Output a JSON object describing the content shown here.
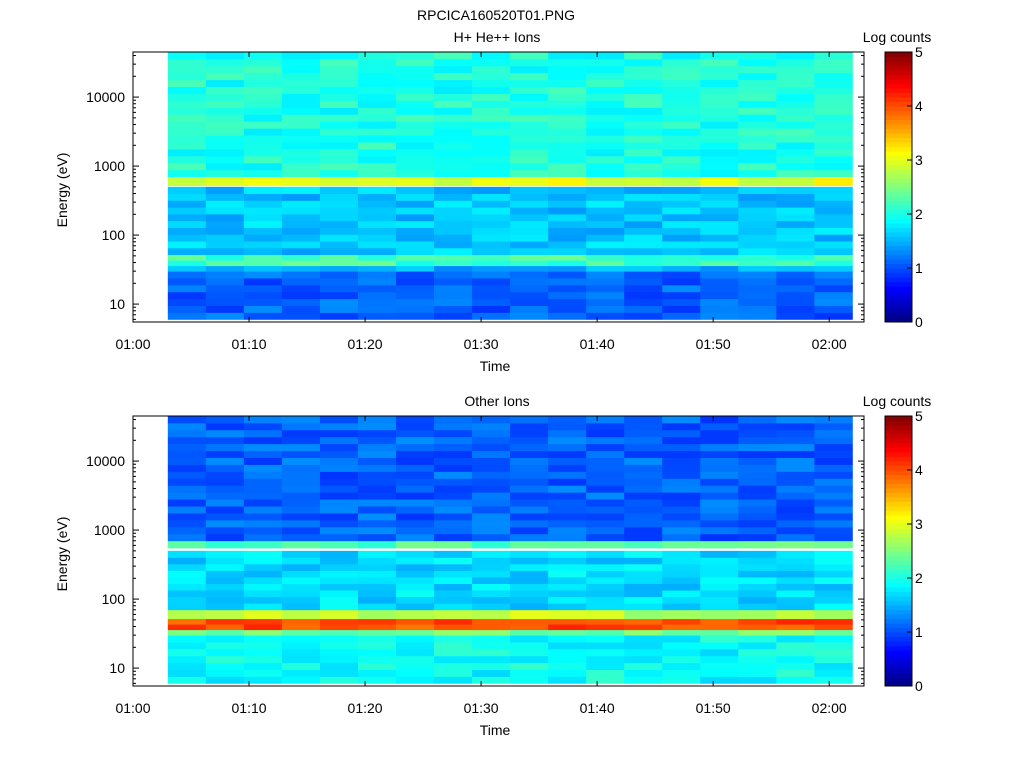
{
  "figure_title": "RPCICA160520T01.PNG",
  "chart_data": [
    {
      "type": "heatmap",
      "title": "H+ He++ Ions",
      "xlabel": "Time",
      "ylabel": "Energy (eV)",
      "xlim": [
        "01:00",
        "02:03"
      ],
      "ylim": [
        5.5,
        45000
      ],
      "yscale": "log",
      "x_ticks": [
        "01:00",
        "01:10",
        "01:20",
        "01:30",
        "01:40",
        "01:50",
        "02:00"
      ],
      "y_ticks": [
        "10",
        "100",
        "1000",
        "10000"
      ],
      "data_time_range": [
        "01:03",
        "02:02"
      ],
      "colorbar": {
        "label": "Log counts",
        "range": [
          0,
          5
        ],
        "ticks": [
          "0",
          "1",
          "2",
          "3",
          "4",
          "5"
        ],
        "colormap": "jet"
      },
      "bands": [
        {
          "energy_range_eV": [
            6,
            30
          ],
          "log_counts": 1.1
        },
        {
          "energy_range_eV": [
            30,
            36
          ],
          "log_counts": 1.5
        },
        {
          "energy_range_eV": [
            36,
            52
          ],
          "log_counts": 2.2
        },
        {
          "energy_range_eV": [
            52,
            500
          ],
          "log_counts": 1.6
        },
        {
          "energy_range_eV": [
            520,
            680
          ],
          "log_counts": 3.0
        },
        {
          "energy_range_eV": [
            700,
            45000
          ],
          "log_counts": 2.0
        }
      ]
    },
    {
      "type": "heatmap",
      "title": "Other Ions",
      "xlabel": "Time",
      "ylabel": "Energy (eV)",
      "xlim": [
        "01:00",
        "02:03"
      ],
      "ylim": [
        5.5,
        45000
      ],
      "yscale": "log",
      "x_ticks": [
        "01:00",
        "01:10",
        "01:20",
        "01:30",
        "01:40",
        "01:50",
        "02:00"
      ],
      "y_ticks": [
        "10",
        "100",
        "1000",
        "10000"
      ],
      "data_time_range": [
        "01:03",
        "02:02"
      ],
      "colorbar": {
        "label": "Log counts",
        "range": [
          0,
          5
        ],
        "ticks": [
          "0",
          "1",
          "2",
          "3",
          "4",
          "5"
        ],
        "colormap": "jet"
      },
      "bands": [
        {
          "energy_range_eV": [
            6,
            30
          ],
          "log_counts": 1.9
        },
        {
          "energy_range_eV": [
            30,
            36
          ],
          "log_counts": 2.4
        },
        {
          "energy_range_eV": [
            36,
            52
          ],
          "log_counts": 4.0
        },
        {
          "energy_range_eV": [
            52,
            70
          ],
          "log_counts": 2.8
        },
        {
          "energy_range_eV": [
            70,
            500
          ],
          "log_counts": 1.7
        },
        {
          "energy_range_eV": [
            550,
            700
          ],
          "log_counts": 2.3
        },
        {
          "energy_range_eV": [
            700,
            45000
          ],
          "log_counts": 1.1
        }
      ]
    }
  ]
}
